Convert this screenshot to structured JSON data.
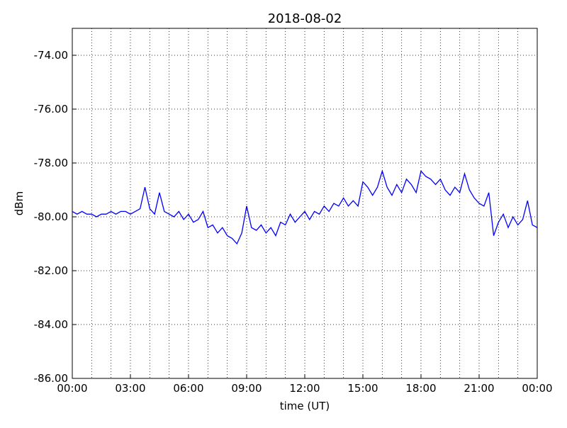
{
  "chart_data": {
    "type": "line",
    "title": "2018-08-02",
    "xlabel": "time (UT)",
    "ylabel": "dBm",
    "x": [
      0,
      0.25,
      0.5,
      0.75,
      1,
      1.25,
      1.5,
      1.75,
      2,
      2.25,
      2.5,
      2.75,
      3,
      3.25,
      3.5,
      3.75,
      4,
      4.25,
      4.5,
      4.75,
      5,
      5.25,
      5.5,
      5.75,
      6,
      6.25,
      6.5,
      6.75,
      7,
      7.25,
      7.5,
      7.75,
      8,
      8.25,
      8.5,
      8.75,
      9,
      9.25,
      9.5,
      9.75,
      10,
      10.25,
      10.5,
      10.75,
      11,
      11.25,
      11.5,
      11.75,
      12,
      12.25,
      12.5,
      12.75,
      13,
      13.25,
      13.5,
      13.75,
      14,
      14.25,
      14.5,
      14.75,
      15,
      15.25,
      15.5,
      15.75,
      16,
      16.25,
      16.5,
      16.75,
      17,
      17.25,
      17.5,
      17.75,
      18,
      18.25,
      18.5,
      18.75,
      19,
      19.25,
      19.5,
      19.75,
      20,
      20.25,
      20.5,
      20.75,
      21,
      21.25,
      21.5,
      21.75,
      22,
      22.25,
      22.5,
      22.75,
      23,
      23.25,
      23.5,
      23.75,
      24
    ],
    "series": [
      {
        "name": "dBm",
        "color": "#0000ff",
        "values": [
          -79.8,
          -79.9,
          -79.8,
          -79.9,
          -79.9,
          -80.0,
          -79.9,
          -79.9,
          -79.8,
          -79.9,
          -79.8,
          -79.8,
          -79.9,
          -79.8,
          -79.7,
          -78.9,
          -79.7,
          -79.9,
          -79.1,
          -79.8,
          -79.9,
          -80.0,
          -79.8,
          -80.1,
          -79.9,
          -80.2,
          -80.1,
          -79.8,
          -80.4,
          -80.3,
          -80.6,
          -80.4,
          -80.7,
          -80.8,
          -81.0,
          -80.6,
          -79.6,
          -80.4,
          -80.5,
          -80.3,
          -80.6,
          -80.4,
          -80.7,
          -80.2,
          -80.3,
          -79.9,
          -80.2,
          -80.0,
          -79.8,
          -80.1,
          -79.8,
          -79.9,
          -79.6,
          -79.8,
          -79.5,
          -79.6,
          -79.3,
          -79.6,
          -79.4,
          -79.6,
          -78.7,
          -78.9,
          -79.2,
          -78.9,
          -78.3,
          -78.9,
          -79.2,
          -78.8,
          -79.1,
          -78.6,
          -78.8,
          -79.1,
          -78.3,
          -78.5,
          -78.6,
          -78.8,
          -78.6,
          -79.0,
          -79.2,
          -78.9,
          -79.1,
          -78.4,
          -79.0,
          -79.3,
          -79.5,
          -79.6,
          -79.1,
          -80.7,
          -80.2,
          -79.9,
          -80.4,
          -80.0,
          -80.3,
          -80.1,
          -79.4,
          -80.3,
          -80.4
        ]
      }
    ],
    "xlim": [
      0,
      24
    ],
    "xticks": [
      {
        "value": 0,
        "label": "00:00"
      },
      {
        "value": 3,
        "label": "03:00"
      },
      {
        "value": 6,
        "label": "06:00"
      },
      {
        "value": 9,
        "label": "09:00"
      },
      {
        "value": 12,
        "label": "12:00"
      },
      {
        "value": 15,
        "label": "15:00"
      },
      {
        "value": 18,
        "label": "18:00"
      },
      {
        "value": 21,
        "label": "21:00"
      },
      {
        "value": 24,
        "label": "00:00"
      }
    ],
    "xminorticks": [
      1,
      2,
      4,
      5,
      7,
      8,
      10,
      11,
      13,
      14,
      16,
      17,
      19,
      20,
      22,
      23
    ],
    "ylim": [
      -86,
      -73
    ],
    "yticks": [
      {
        "value": -86,
        "label": "-86.00"
      },
      {
        "value": -84,
        "label": "-84.00"
      },
      {
        "value": -82,
        "label": "-82.00"
      },
      {
        "value": -80,
        "label": "-80.00"
      },
      {
        "value": -78,
        "label": "-78.00"
      },
      {
        "value": -76,
        "label": "-76.00"
      },
      {
        "value": -74,
        "label": "-74.00"
      }
    ],
    "grid": true
  }
}
